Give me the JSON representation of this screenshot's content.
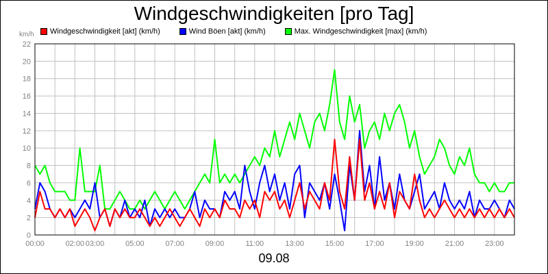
{
  "chart_data": {
    "type": "line",
    "title": "Windgeschwindigkeiten [pro Tag]",
    "ylabel": "km/h",
    "xlabel": "09.08",
    "ylim": [
      0,
      22
    ],
    "xlim": [
      0,
      24
    ],
    "grid": true,
    "legend_position": "top",
    "y_ticks": [
      "0",
      "2",
      "4",
      "6",
      "8",
      "10",
      "12",
      "14",
      "16",
      "18",
      "20",
      "22"
    ],
    "x_ticks": [
      "00:00",
      "02:00",
      "03:00",
      "05:00",
      "07:00",
      "09:00",
      "11:00",
      "13:00",
      "15:00",
      "17:00",
      "19:00",
      "21:00",
      "23:00"
    ],
    "x_tick_hours": [
      0,
      2,
      3,
      5,
      7,
      9,
      11,
      13,
      15,
      17,
      19,
      21,
      23
    ],
    "x": [
      0,
      0.25,
      0.5,
      0.75,
      1,
      1.25,
      1.5,
      1.75,
      2,
      2.25,
      2.5,
      2.75,
      3,
      3.25,
      3.5,
      3.75,
      4,
      4.25,
      4.5,
      4.75,
      5,
      5.25,
      5.5,
      5.75,
      6,
      6.25,
      6.5,
      6.75,
      7,
      7.25,
      7.5,
      7.75,
      8,
      8.25,
      8.5,
      8.75,
      9,
      9.25,
      9.5,
      9.75,
      10,
      10.25,
      10.5,
      10.75,
      11,
      11.25,
      11.5,
      11.75,
      12,
      12.25,
      12.5,
      12.75,
      13,
      13.25,
      13.5,
      13.75,
      14,
      14.25,
      14.5,
      14.75,
      15,
      15.25,
      15.5,
      15.75,
      16,
      16.25,
      16.5,
      16.75,
      17,
      17.25,
      17.5,
      17.75,
      18,
      18.25,
      18.5,
      18.75,
      19,
      19.25,
      19.5,
      19.75,
      20,
      20.25,
      20.5,
      20.75,
      21,
      21.25,
      21.5,
      21.75,
      22,
      22.25,
      22.5,
      22.75,
      23,
      23.25,
      23.5,
      23.75,
      24
    ],
    "series": [
      {
        "name": "Windgeschwindigkeit [akt] (km/h)",
        "color": "#ff0000",
        "values": [
          2,
          5,
          3,
          3,
          2,
          3,
          2,
          3,
          1,
          2,
          3,
          2,
          0.5,
          2,
          3,
          1,
          3,
          2,
          3,
          2,
          2,
          3,
          2,
          1,
          2,
          1,
          2,
          3,
          2,
          1,
          2,
          3,
          2,
          1,
          3,
          2,
          3,
          2,
          4,
          3,
          3,
          2,
          4,
          3,
          4,
          2,
          5,
          4,
          5,
          3,
          4,
          2,
          4,
          6,
          3,
          5,
          4,
          3,
          6,
          4,
          11,
          5,
          3,
          9,
          4,
          11,
          4,
          6,
          3,
          5,
          3,
          6,
          2,
          5,
          4,
          3,
          7,
          4,
          2,
          3,
          2,
          3,
          4,
          3,
          2,
          3,
          2,
          3,
          2,
          3,
          2,
          3,
          2,
          3,
          2,
          3,
          2
        ]
      },
      {
        "name": "Wind Böen [akt] (km/h)",
        "color": "#0000ff",
        "values": [
          3,
          6,
          5,
          3,
          2,
          3,
          2,
          3,
          2,
          3,
          4,
          3,
          6,
          2,
          3,
          1,
          3,
          2,
          4,
          2,
          3,
          2,
          4,
          1,
          3,
          2,
          3,
          2,
          3,
          2,
          2,
          3,
          5,
          2,
          4,
          3,
          3,
          2,
          5,
          4,
          5,
          3,
          8,
          5,
          3,
          6,
          8,
          5,
          7,
          4,
          6,
          3,
          7,
          8,
          2,
          6,
          5,
          4,
          6,
          3,
          7,
          4,
          0.5,
          8,
          4,
          12,
          5,
          8,
          3,
          9,
          4,
          6,
          3,
          7,
          4,
          3,
          5,
          7,
          3,
          4,
          5,
          3,
          6,
          4,
          3,
          4,
          3,
          5,
          2,
          4,
          3,
          3,
          4,
          3,
          2,
          4,
          3
        ]
      },
      {
        "name": "Max. Windgeschwindigkeit [max] (km/h)",
        "color": "#00ff00",
        "values": [
          8,
          7,
          8,
          6,
          5,
          5,
          5,
          4,
          4,
          10,
          5,
          5,
          5,
          8,
          3,
          3,
          4,
          5,
          4,
          3,
          3,
          4,
          3,
          4,
          5,
          4,
          3,
          4,
          5,
          4,
          3,
          4,
          5,
          6,
          7,
          6,
          11,
          6,
          7,
          6,
          7,
          6,
          7,
          8,
          9,
          8,
          10,
          9,
          12,
          9,
          11,
          13,
          11,
          14,
          12,
          10,
          13,
          14,
          12,
          15,
          19,
          13,
          11,
          16,
          13,
          15,
          10,
          12,
          13,
          11,
          14,
          12,
          14,
          15,
          13,
          10,
          12,
          9,
          7,
          8,
          9,
          11,
          10,
          8,
          7,
          9,
          8,
          10,
          7,
          6,
          6,
          5,
          6,
          5,
          5,
          6,
          6
        ]
      }
    ]
  }
}
